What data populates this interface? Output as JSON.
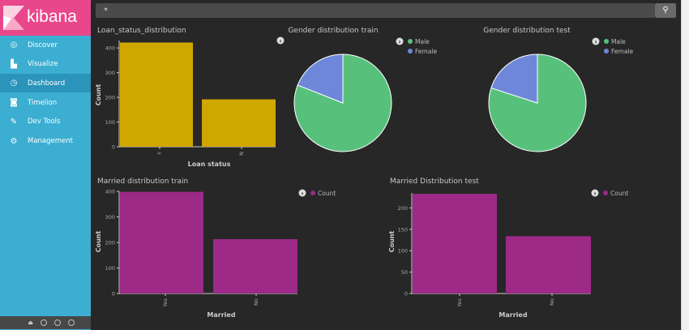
{
  "app": {
    "brand": "kibana",
    "brand_color": "#e8488b",
    "sidebar_color": "#3caed2"
  },
  "sidebar": {
    "items": [
      {
        "label": "Discover",
        "icon": "compass-icon",
        "active": false
      },
      {
        "label": "Visualize",
        "icon": "bar-chart-icon",
        "active": false
      },
      {
        "label": "Dashboard",
        "icon": "dashboard-icon",
        "active": true
      },
      {
        "label": "Timelion",
        "icon": "timelion-icon",
        "active": false
      },
      {
        "label": "Dev Tools",
        "icon": "wrench-icon",
        "active": false
      },
      {
        "label": "Management",
        "icon": "gear-icon",
        "active": false
      }
    ]
  },
  "search": {
    "value": "*",
    "button_icon": "search-icon"
  },
  "chart_data": [
    {
      "type": "bar",
      "title": "Loan_status_distribution",
      "xlabel": "Loan status",
      "ylabel": "Count",
      "categories": [
        "Y",
        "N"
      ],
      "values": [
        422,
        192
      ],
      "ylim": [
        0,
        430
      ],
      "yticks": [
        0,
        100,
        200,
        300,
        400
      ],
      "color": "#d0a600",
      "legend": []
    },
    {
      "type": "pie",
      "title": "Gender distribution train",
      "categories": [
        "Male",
        "Female"
      ],
      "values": [
        81,
        19
      ],
      "colors": [
        "#57c17b",
        "#6f87d8"
      ],
      "legend": [
        "Male",
        "Female"
      ]
    },
    {
      "type": "pie",
      "title": "Gender distribution test",
      "categories": [
        "Male",
        "Female"
      ],
      "values": [
        80,
        20
      ],
      "colors": [
        "#57c17b",
        "#6f87d8"
      ],
      "legend": [
        "Male",
        "Female"
      ]
    },
    {
      "type": "bar",
      "title": "Married distribution train",
      "xlabel": "Married",
      "ylabel": "Count",
      "categories": [
        "Yes",
        "No"
      ],
      "values": [
        398,
        213
      ],
      "ylim": [
        0,
        400
      ],
      "yticks": [
        0,
        100,
        200,
        300,
        400
      ],
      "color": "#9c2a86",
      "legend": [
        "Count"
      ]
    },
    {
      "type": "bar",
      "title": "Married Distribution test",
      "xlabel": "Married",
      "ylabel": "Count",
      "categories": [
        "Yes",
        "No"
      ],
      "values": [
        233,
        134
      ],
      "ylim": [
        0,
        235
      ],
      "yticks": [
        0,
        50,
        100,
        150,
        200
      ],
      "color": "#9c2a86",
      "legend": [
        "Count"
      ]
    }
  ]
}
